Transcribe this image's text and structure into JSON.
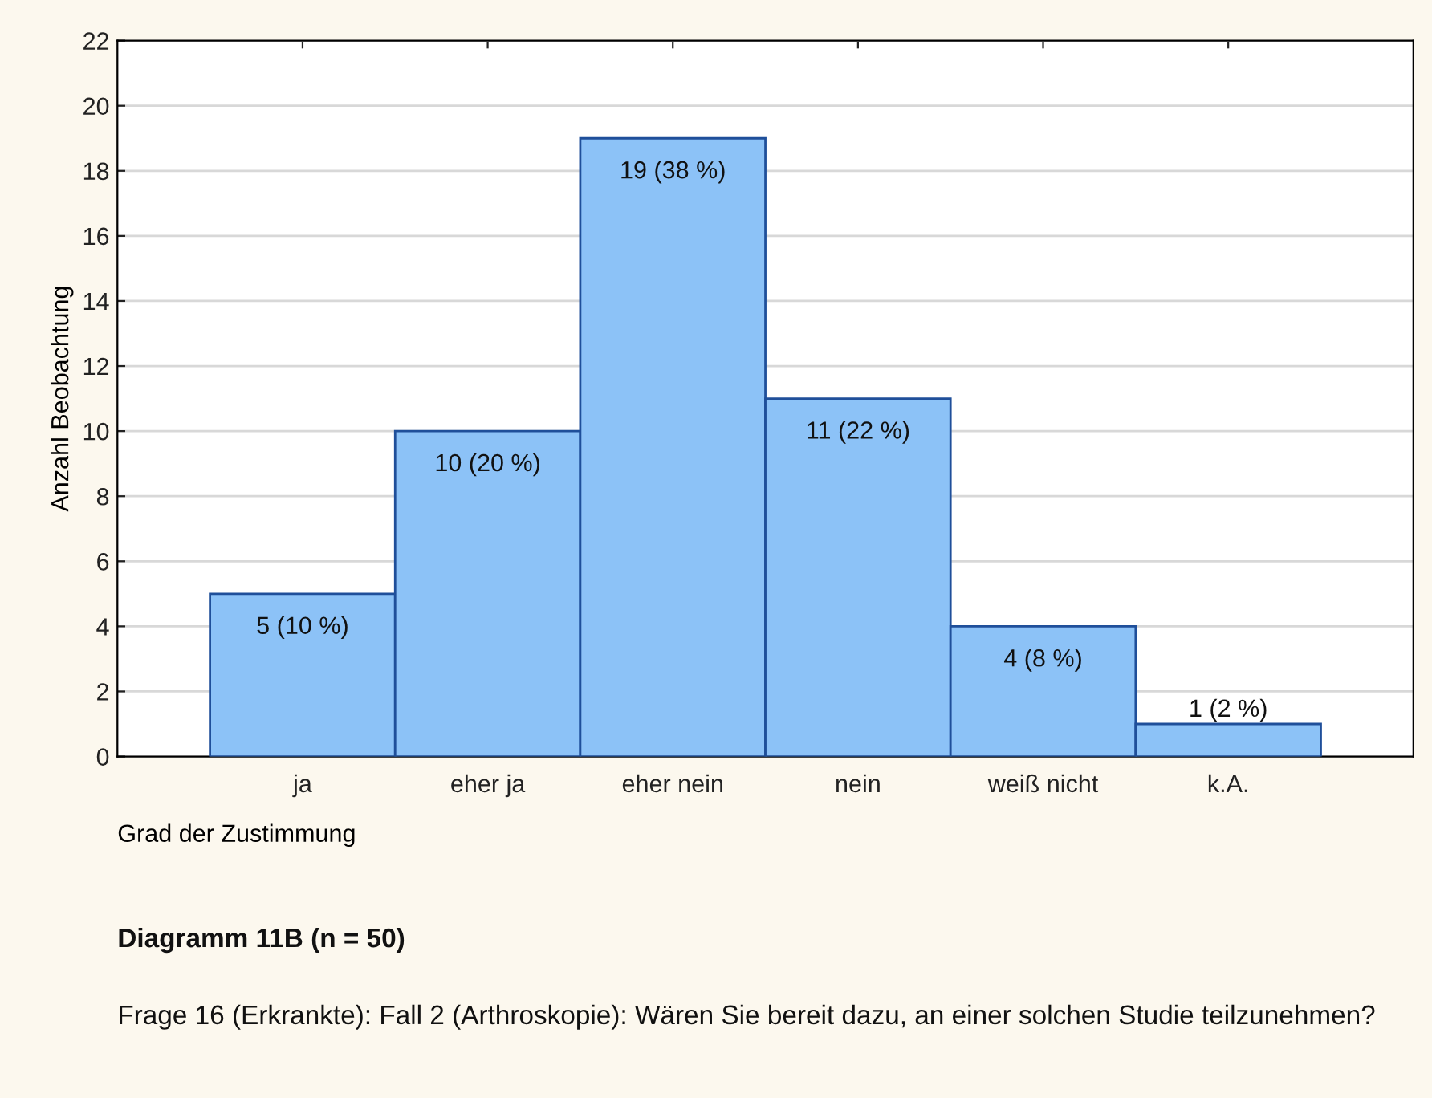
{
  "chart_data": {
    "type": "bar",
    "categories": [
      "ja",
      "eher ja",
      "eher nein",
      "nein",
      "weiß nicht",
      "k.A."
    ],
    "values": [
      5,
      10,
      19,
      11,
      4,
      1
    ],
    "value_labels": [
      "5 (10 %)",
      "10 (20 %)",
      "19 (38 %)",
      "11 (22 %)",
      "4 (8 %)",
      "1 (2 %)"
    ],
    "color": "#8cc2f7",
    "xlabel": "Grad der Zustimmung",
    "ylabel": "Anzahl Beobachtung",
    "ylim": [
      0,
      22
    ],
    "yticks": [
      0,
      2,
      4,
      6,
      8,
      10,
      12,
      14,
      16,
      18,
      20,
      22
    ],
    "grid": "y",
    "annotations": [
      "Diagramm 11B (n = 50)",
      "Frage 16 (Erkrankte): Fall 2 (Arthroskopie): Wären Sie bereit dazu, an einer solchen Studie teilzunehmen?"
    ]
  }
}
